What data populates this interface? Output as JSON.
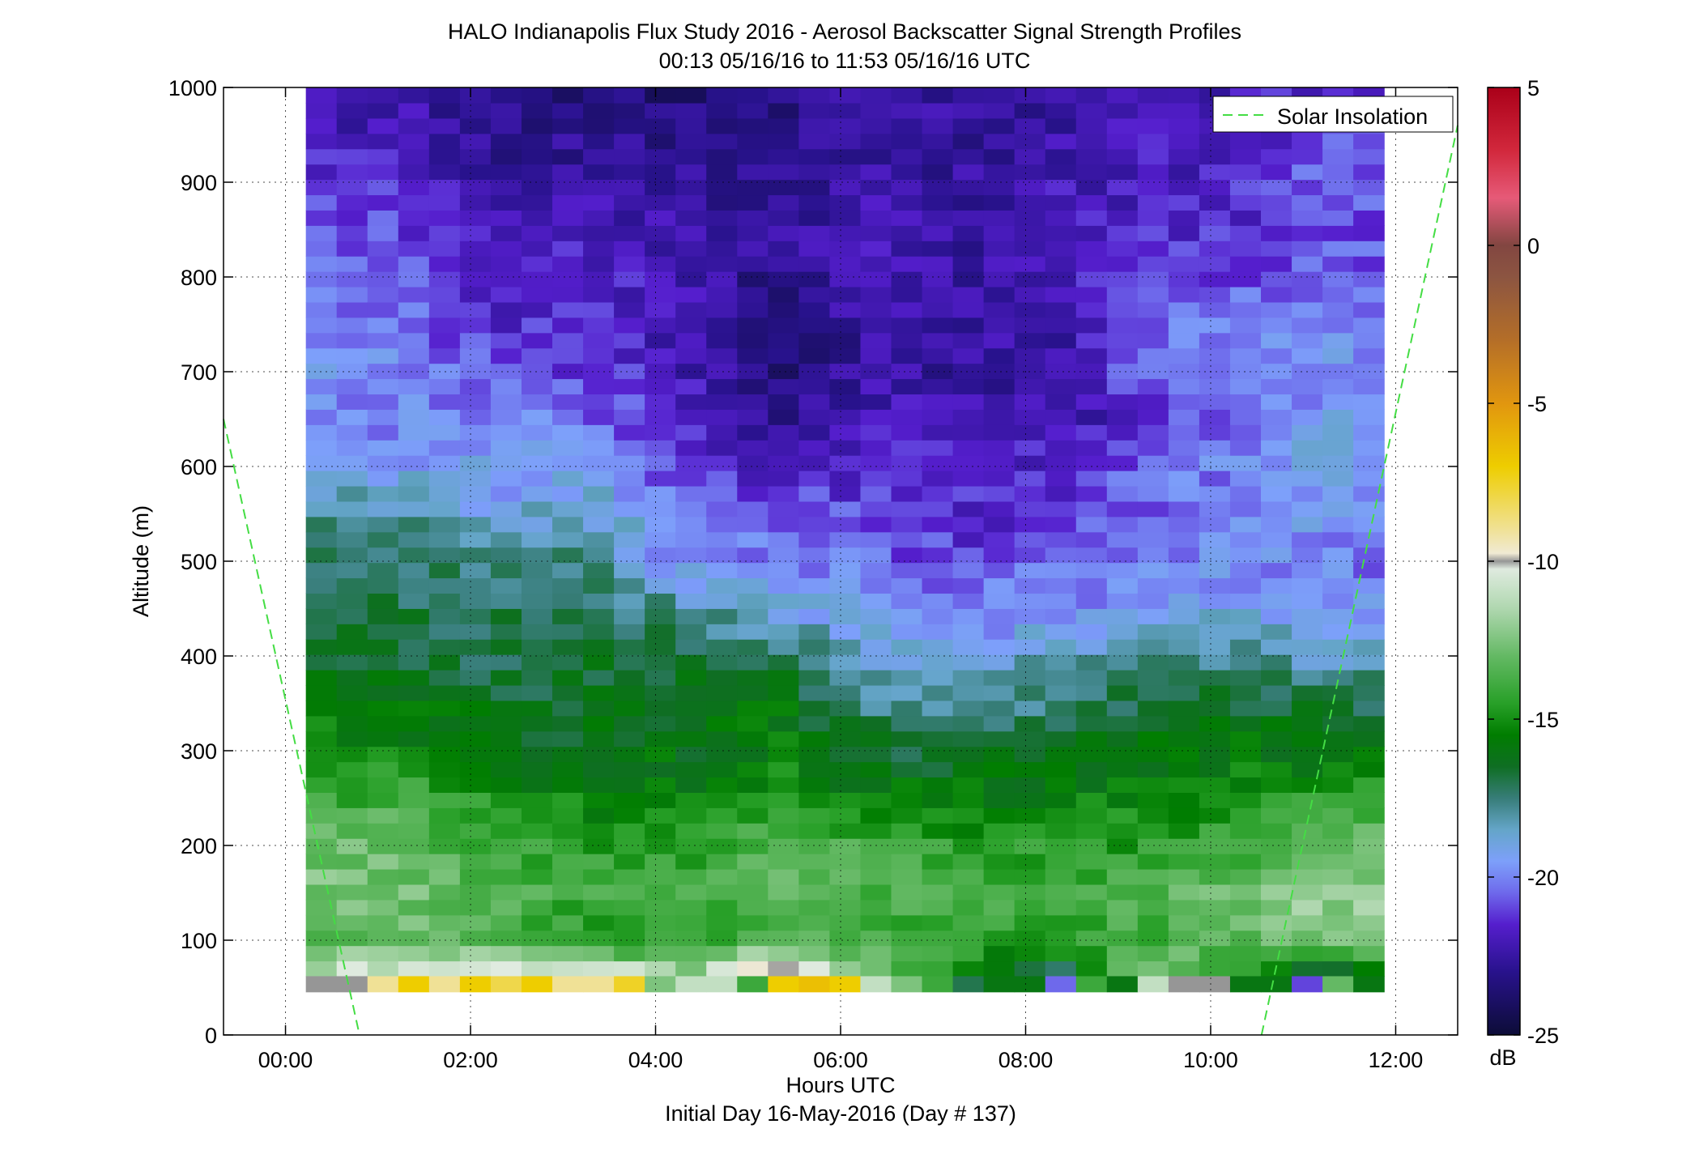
{
  "chart_data": {
    "type": "heatmap",
    "title": "HALO Indianapolis Flux Study 2016 - Aerosol Backscatter Signal Strength Profiles",
    "subtitle": "00:13 05/16/16 to 11:53 05/16/16  UTC",
    "xlabel": "Hours UTC",
    "xlabel2": "Initial Day 16-May-2016 (Day # 137)",
    "ylabel": "Altitude (m)",
    "xlim": [
      -0.67,
      12.67
    ],
    "ylim": [
      0,
      1000
    ],
    "x_ticks": [
      0,
      2,
      4,
      6,
      8,
      10,
      12
    ],
    "x_tick_labels": [
      "00:00",
      "02:00",
      "04:00",
      "06:00",
      "08:00",
      "10:00",
      "12:00"
    ],
    "y_ticks": [
      0,
      100,
      200,
      300,
      400,
      500,
      600,
      700,
      800,
      900,
      1000
    ],
    "grid": true,
    "colorbar": {
      "label": "dB",
      "range": [
        -25,
        5
      ],
      "ticks": [
        5,
        0,
        -5,
        -10,
        -15,
        -20,
        -25
      ]
    },
    "legend": {
      "placement": "top-right",
      "entries": [
        "Solar Insolation"
      ]
    },
    "time_start_h": 0.22,
    "time_end_h": 11.88,
    "alt_start_m": 45,
    "alt_step_m": 16.5,
    "cell_rows_low_to_high": 58,
    "column_anchors_h": [
      0.3,
      1.3,
      2.3,
      3.3,
      4.3,
      5.3,
      6.3,
      7.3,
      8.3,
      9.3,
      10.3,
      11.3,
      11.85
    ],
    "profile_altitudes_m": [
      50,
      100,
      150,
      200,
      250,
      300,
      350,
      400,
      450,
      500,
      550,
      600,
      650,
      700,
      750,
      800,
      850,
      900,
      950,
      1000
    ],
    "profiles_db": [
      [
        -10,
        -13,
        -12.5,
        -13,
        -14,
        -15,
        -16,
        -16.5,
        -17,
        -17.5,
        -18,
        -19.5,
        -20,
        -19.5,
        -20,
        -20,
        -20.5,
        -21,
        -22,
        -22
      ],
      [
        -9,
        -13,
        -12.5,
        -13,
        -14,
        -15.5,
        -16,
        -16.5,
        -17,
        -17.5,
        -18,
        -19.5,
        -20,
        -20,
        -20.5,
        -20.5,
        -21,
        -21.5,
        -22,
        -22.5
      ],
      [
        -8,
        -14,
        -13.5,
        -14,
        -15,
        -16,
        -16.5,
        -17,
        -17,
        -17.5,
        -19,
        -19.5,
        -20,
        -21,
        -21.5,
        -22,
        -22,
        -22.5,
        -23,
        -23
      ],
      [
        -8,
        -14.5,
        -14,
        -14.5,
        -15.5,
        -16,
        -16.5,
        -16.5,
        -17,
        -17.5,
        -18.5,
        -19.5,
        -20.5,
        -21,
        -21.5,
        -21.5,
        -22,
        -22.5,
        -23,
        -23.5
      ],
      [
        -11,
        -14.5,
        -14,
        -14.5,
        -15.5,
        -16,
        -16.5,
        -16.5,
        -18,
        -20,
        -20.5,
        -21,
        -21.5,
        -22,
        -22.5,
        -22,
        -22.5,
        -22.5,
        -23,
        -23.5
      ],
      [
        -7,
        -13.5,
        -13,
        -13.5,
        -15,
        -15.5,
        -16,
        -17,
        -19,
        -20,
        -20.5,
        -22,
        -23,
        -23.5,
        -23.5,
        -23.5,
        -22.5,
        -23,
        -23,
        -23.5
      ],
      [
        -12,
        -14,
        -13.5,
        -14,
        -15.5,
        -16.5,
        -17.5,
        -18.5,
        -19.5,
        -20.5,
        -21,
        -21.5,
        -22,
        -22.5,
        -22.5,
        -22,
        -22,
        -22.5,
        -22.5,
        -22
      ],
      [
        -16,
        -14,
        -14,
        -14.5,
        -15.5,
        -16.5,
        -18.5,
        -19,
        -20,
        -21,
        -21.5,
        -21.5,
        -22,
        -22.5,
        -22.5,
        -22.5,
        -22.5,
        -22.5,
        -23,
        -22.5
      ],
      [
        -19,
        -14.5,
        -14,
        -14.5,
        -15.5,
        -16,
        -17.5,
        -18.5,
        -20,
        -20.5,
        -21.5,
        -21.5,
        -22.5,
        -22.5,
        -22.5,
        -22,
        -22,
        -22,
        -22.5,
        -22.5
      ],
      [
        -10,
        -14,
        -13.5,
        -14.5,
        -15.5,
        -16,
        -16.5,
        -18,
        -19.5,
        -20,
        -20.5,
        -20.5,
        -21.5,
        -20.5,
        -20.5,
        -21,
        -21.5,
        -22,
        -22,
        -22
      ],
      [
        -16,
        -13,
        -13,
        -14,
        -15,
        -15.5,
        -16.5,
        -18,
        -19,
        -20,
        -20,
        -20,
        -20,
        -20.5,
        -20,
        -21,
        -21.5,
        -21.5,
        -21.5,
        -22
      ],
      [
        -20,
        -12,
        -12,
        -13,
        -14.5,
        -16,
        -17,
        -18.5,
        -19.5,
        -20,
        -19.5,
        -19,
        -19.5,
        -19.5,
        -20,
        -20.5,
        -21,
        -20.5,
        -21,
        -21.5
      ],
      [
        -16,
        -12,
        -12,
        -13,
        -14.5,
        -16,
        -17,
        -18.5,
        -19.5,
        -20.5,
        -20,
        -19,
        -19.5,
        -19.5,
        -20,
        -20.5,
        -21,
        -20.5,
        -21,
        -21.5
      ]
    ],
    "solar_insolation_line": {
      "name": "Solar Insolation",
      "color": "#44dd44",
      "segments": [
        [
          [
            -0.67,
            650
          ],
          [
            0.8,
            0
          ]
        ],
        [
          [
            10.55,
            0
          ],
          [
            12.67,
            960
          ]
        ]
      ]
    },
    "surface_row": {
      "altitude_range_m": [
        45,
        62
      ],
      "cell_width_h": 0.333,
      "values_db": [
        -10,
        -10,
        -9,
        -7,
        -9,
        -7,
        -8,
        -7,
        -9,
        -9,
        -7.5,
        -12.5,
        -11,
        -11,
        -14,
        -7,
        -6.5,
        -7,
        -11,
        -12.5,
        -14,
        -17,
        -16,
        -16,
        -20.5,
        -14,
        -16,
        -11,
        -10,
        -10,
        -16,
        -16,
        -21,
        -13,
        -16
      ]
    }
  }
}
